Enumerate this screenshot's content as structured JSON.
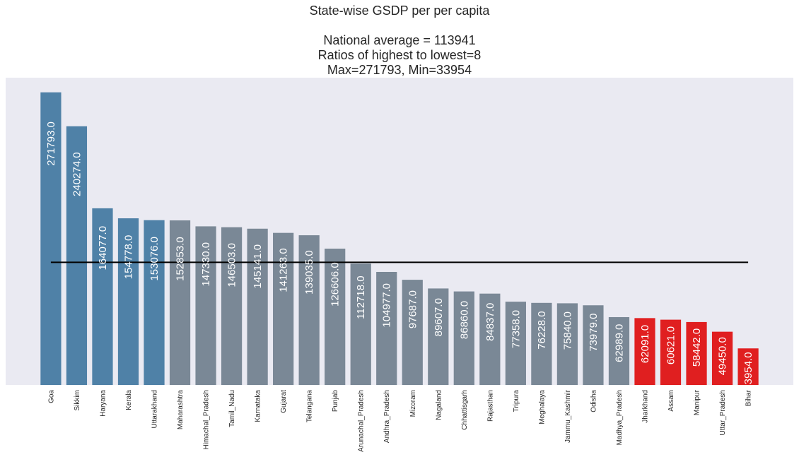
{
  "chart_data": {
    "type": "bar",
    "title_lines": [
      "State-wise GSDP per per capita",
      "",
      "National average = 113941",
      "Ratios of highest to lowest=8",
      "Max=271793, Min=33954"
    ],
    "xlabel": "",
    "ylabel": "",
    "ylim": [
      0,
      285383
    ],
    "grid": false,
    "average_line": 113941,
    "categories": [
      "Goa",
      "Sikkim",
      "Haryana",
      "Kerala",
      "Uttarakhand",
      "Maharashtra",
      "Himachal_Pradesh",
      "Tamil_Nadu",
      "Karnataka",
      "Gujarat",
      "Telangana",
      "Punjab",
      "Arunachal_Pradesh",
      "Andhra_Pradesh",
      "Mizoram",
      "Nagaland",
      "Chhattisgarh",
      "Rajasthan",
      "Tripura",
      "Meghalaya",
      "Jammu_Kashmir",
      "Odisha",
      "Madhya_Pradesh",
      "Jharkhand",
      "Assam",
      "Manipur",
      "Uttar_Pradesh",
      "Bihar"
    ],
    "values": [
      271793,
      240274,
      164077,
      154778,
      153076,
      152853,
      147330,
      146503,
      145141,
      141263,
      139035,
      126606,
      112718,
      104977,
      97687,
      89607,
      86860,
      84837,
      77358,
      76228,
      75840,
      73979,
      62989,
      62091,
      60621,
      58442,
      49450,
      33954
    ],
    "data_labels": [
      "271793.0",
      "240274.0",
      "164077.0",
      "154778.0",
      "153076.0",
      "152853.0",
      "147330.0",
      "146503.0",
      "145141.0",
      "141263.0",
      "139035.0",
      "126606.0",
      "112718.0",
      "104977.0",
      "97687.0",
      "89607.0",
      "86860.0",
      "84837.0",
      "77358.0",
      "76228.0",
      "75840.0",
      "73979.0",
      "62989.0",
      "62091.0",
      "60621.0",
      "58442.0",
      "49450.0",
      "33954.0"
    ],
    "colors": {
      "top": "#4f81a7",
      "middle": "#7a8896",
      "bottom": "#e01f20",
      "background": "#eaeaf2",
      "average_line": "#000000"
    },
    "color_groups": [
      "top",
      "top",
      "top",
      "top",
      "top",
      "middle",
      "middle",
      "middle",
      "middle",
      "middle",
      "middle",
      "middle",
      "middle",
      "middle",
      "middle",
      "middle",
      "middle",
      "middle",
      "middle",
      "middle",
      "middle",
      "middle",
      "middle",
      "bottom",
      "bottom",
      "bottom",
      "bottom",
      "bottom"
    ]
  }
}
